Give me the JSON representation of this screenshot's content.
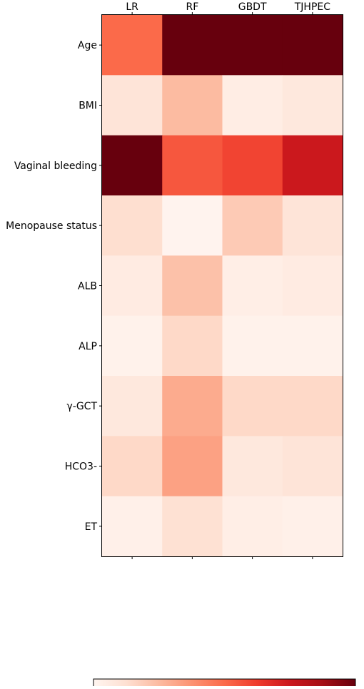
{
  "chart_data": [
    {
      "type": "heatmap",
      "columns": [
        "LR",
        "RF",
        "GBDT",
        "TJHPEC"
      ],
      "rows": [
        "Age",
        "BMI",
        "Vaginal bleeding",
        "Menopause status",
        "ALB",
        "ALP",
        "γ-GCT",
        "HCO3-",
        "ET"
      ],
      "values": [
        [
          0.5,
          1.0,
          1.0,
          1.0
        ],
        [
          0.1,
          0.25,
          0.05,
          0.08
        ],
        [
          1.0,
          0.55,
          0.6,
          0.75
        ],
        [
          0.13,
          0.01,
          0.2,
          0.1
        ],
        [
          0.06,
          0.23,
          0.04,
          0.06
        ],
        [
          0.02,
          0.15,
          0.02,
          0.02
        ],
        [
          0.08,
          0.3,
          0.15,
          0.15
        ],
        [
          0.15,
          0.33,
          0.08,
          0.1
        ],
        [
          0.03,
          0.12,
          0.04,
          0.03
        ]
      ],
      "colorbar": {
        "min": 0.0,
        "max": 1.0,
        "ticks": [
          "0.0",
          "0.2",
          "0.4",
          "0.6",
          "0.8",
          "1.0"
        ]
      },
      "colormap": "Reds",
      "color_stops": [
        "#fff5f0",
        "#fee0d2",
        "#fcbba1",
        "#fc9272",
        "#fb6a4a",
        "#ef3b2c",
        "#cb181d",
        "#a50f15",
        "#67000d"
      ]
    }
  ]
}
